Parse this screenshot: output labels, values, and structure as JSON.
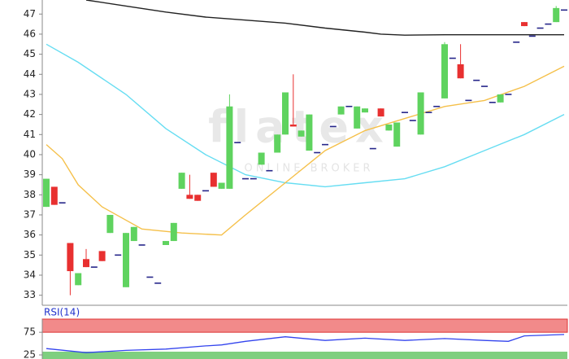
{
  "chart_data": [
    {
      "type": "candlestick",
      "open": [
        37.4,
        38.4,
        37.6,
        35.6,
        33.5,
        34.8,
        34.4,
        35.2,
        36.1,
        35.0,
        33.4,
        35.7,
        35.5,
        33.9,
        33.6,
        35.5,
        35.7,
        38.3,
        38.0,
        38.0,
        38.2,
        39.1,
        38.3,
        38.3,
        40.6,
        38.8,
        38.8,
        39.5,
        39.2,
        40.1,
        41.0,
        41.5,
        40.9,
        40.2,
        40.1,
        40.5,
        41.4,
        42.0,
        42.4,
        41.3,
        42.1,
        40.3,
        42.3,
        41.2,
        40.4,
        42.1,
        41.7,
        41.0,
        42.1,
        42.4,
        42.8,
        44.8,
        44.5,
        42.7,
        43.7,
        43.4,
        42.6,
        42.6,
        43.0,
        45.6,
        46.6,
        45.9,
        46.3,
        46.5,
        46.6,
        47.2
      ],
      "high": [
        38.8,
        38.4,
        37.6,
        35.6,
        34.1,
        35.3,
        34.4,
        35.2,
        37.0,
        35.0,
        36.1,
        36.4,
        35.5,
        33.9,
        33.6,
        35.7,
        36.6,
        39.1,
        39.0,
        38.0,
        38.2,
        39.1,
        38.6,
        43.0,
        40.6,
        38.8,
        38.8,
        40.1,
        39.2,
        41.0,
        43.1,
        44.0,
        41.2,
        42.0,
        40.1,
        40.5,
        41.4,
        42.4,
        42.4,
        42.4,
        42.3,
        40.3,
        42.3,
        41.5,
        41.6,
        42.1,
        41.7,
        43.1,
        42.1,
        42.4,
        45.6,
        44.8,
        45.5,
        42.7,
        43.7,
        43.4,
        42.6,
        43.0,
        43.0,
        45.6,
        46.6,
        45.9,
        46.3,
        46.5,
        47.4,
        47.2
      ],
      "low": [
        37.4,
        37.5,
        37.6,
        33.0,
        33.5,
        34.4,
        34.4,
        34.7,
        36.1,
        35.0,
        33.4,
        35.7,
        35.5,
        33.9,
        33.6,
        35.5,
        35.7,
        38.3,
        37.8,
        37.7,
        38.2,
        38.4,
        38.3,
        38.3,
        40.6,
        38.8,
        38.8,
        39.5,
        39.2,
        40.1,
        41.0,
        41.4,
        40.9,
        40.2,
        40.1,
        40.5,
        41.4,
        42.0,
        42.4,
        41.3,
        42.1,
        40.3,
        41.9,
        41.2,
        40.4,
        42.1,
        41.7,
        41.0,
        42.1,
        42.4,
        42.8,
        44.8,
        43.8,
        42.7,
        43.7,
        43.4,
        42.6,
        42.6,
        43.0,
        45.6,
        46.4,
        45.9,
        46.3,
        46.5,
        46.6,
        47.2
      ],
      "close": [
        38.8,
        37.5,
        37.6,
        34.2,
        34.1,
        34.4,
        34.4,
        34.7,
        37.0,
        35.0,
        36.1,
        36.4,
        35.5,
        33.9,
        33.6,
        35.7,
        36.6,
        39.1,
        37.8,
        37.7,
        38.2,
        38.4,
        38.6,
        42.4,
        40.6,
        38.8,
        38.8,
        40.1,
        39.2,
        41.0,
        43.1,
        41.4,
        41.2,
        42.0,
        40.1,
        40.5,
        41.4,
        42.4,
        42.4,
        42.4,
        42.3,
        40.3,
        41.9,
        41.5,
        41.6,
        42.1,
        41.7,
        43.1,
        42.1,
        42.4,
        45.5,
        44.8,
        43.8,
        42.7,
        43.7,
        43.4,
        42.6,
        43.0,
        43.0,
        45.6,
        46.4,
        45.9,
        46.3,
        46.5,
        47.3,
        47.2
      ],
      "up_color": "#5fd35f",
      "down_color": "#e83030",
      "flat_color": "#26268a",
      "ylim": [
        32.5,
        47.7
      ],
      "yticks": [
        33,
        34,
        35,
        36,
        37,
        38,
        39,
        40,
        41,
        42,
        43,
        44,
        45,
        46,
        47
      ],
      "lines": [
        {
          "color": "#222222",
          "x": [
            5,
            10,
            15,
            20,
            25,
            30,
            35,
            40,
            42,
            45,
            50,
            55,
            60,
            65
          ],
          "values": [
            47.7,
            47.4,
            47.1,
            46.85,
            46.7,
            46.55,
            46.3,
            46.1,
            46.0,
            45.95,
            45.97,
            45.97,
            45.97,
            45.97
          ]
        },
        {
          "color": "#66ddf2",
          "x": [
            0,
            4,
            10,
            15,
            20,
            25,
            30,
            35,
            40,
            45,
            50,
            55,
            60,
            65
          ],
          "values": [
            45.5,
            44.6,
            43.0,
            41.3,
            40.0,
            39.0,
            38.6,
            38.4,
            38.6,
            38.8,
            39.4,
            40.2,
            41.0,
            42.0
          ]
        },
        {
          "color": "#f5c04a",
          "x": [
            0,
            2,
            4,
            7,
            12,
            17,
            22,
            25,
            30,
            35,
            40,
            45,
            50,
            55,
            60,
            65
          ],
          "values": [
            40.5,
            39.8,
            38.5,
            37.4,
            36.3,
            36.1,
            36.0,
            37.0,
            38.6,
            40.2,
            41.2,
            41.8,
            42.4,
            42.7,
            43.4,
            44.4
          ]
        }
      ],
      "watermark": {
        "title": "flatex",
        "subtitle": "ONLINE BROKER"
      }
    },
    {
      "type": "line",
      "title": "RSI(14)",
      "color": "#3344ee",
      "x": [
        0,
        5,
        10,
        15,
        20,
        22,
        25,
        30,
        35,
        40,
        45,
        50,
        55,
        58,
        60,
        65
      ],
      "values": [
        39,
        30,
        35,
        38,
        45,
        47,
        55,
        65,
        57,
        62,
        57,
        61,
        57,
        55,
        67,
        70
      ],
      "ylim": [
        16,
        104
      ],
      "yticks": [
        75,
        25
      ],
      "band_colors": [
        "#f28a8a",
        "#7fcf7f"
      ]
    }
  ]
}
